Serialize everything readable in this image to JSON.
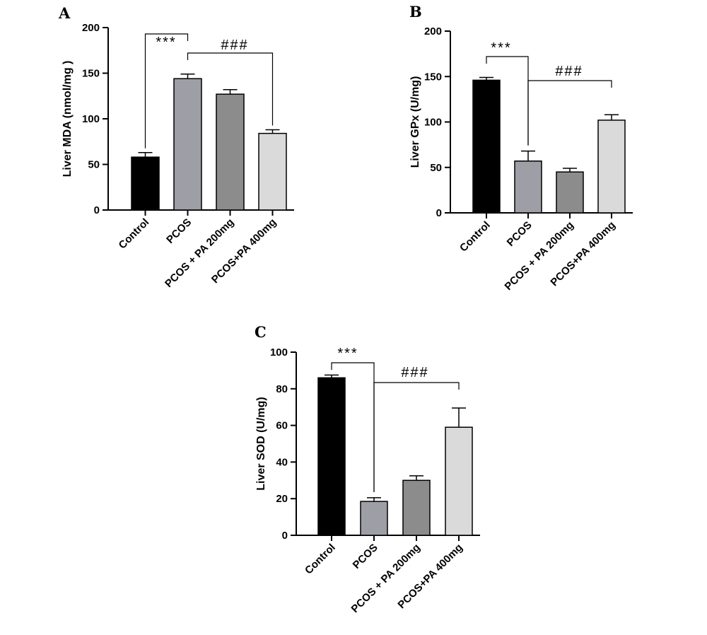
{
  "chart_data": [
    {
      "type": "bar",
      "panel": "A",
      "ylabel": "Liver MDA (nmol/mg )",
      "ylim": [
        0,
        200
      ],
      "yticks": [
        0,
        50,
        100,
        150,
        200
      ],
      "categories": [
        "Control",
        "PCOS",
        "PCOS + PA 200mg",
        "PCOS+PA 400mg"
      ],
      "values": [
        58,
        144,
        127,
        84
      ],
      "errors": [
        5,
        5,
        5,
        4
      ],
      "colors": [
        "#000000",
        "#9e9ea6",
        "#8c8c8c",
        "#dadada"
      ],
      "significance": [
        {
          "label": "***",
          "from": 0,
          "to": 1
        },
        {
          "label": "###",
          "from": 1,
          "to": 3
        }
      ]
    },
    {
      "type": "bar",
      "panel": "B",
      "ylabel": "Liver GPx (U/mg)",
      "ylim": [
        0,
        200
      ],
      "yticks": [
        0,
        50,
        100,
        150,
        200
      ],
      "categories": [
        "Control",
        "PCOS",
        "PCOS + PA 200mg",
        "PCOS+PA 400mg"
      ],
      "values": [
        146,
        57,
        45,
        102
      ],
      "errors": [
        3,
        11,
        4,
        6
      ],
      "colors": [
        "#000000",
        "#9e9ea6",
        "#8c8c8c",
        "#dadada"
      ],
      "significance": [
        {
          "label": "***",
          "from": 0,
          "to": 1
        },
        {
          "label": "###",
          "from": 1,
          "to": 3
        }
      ]
    },
    {
      "type": "bar",
      "panel": "C",
      "ylabel": "Liver SOD (U/mg)",
      "ylim": [
        0,
        100
      ],
      "yticks": [
        0,
        20,
        40,
        60,
        80,
        100
      ],
      "categories": [
        "Control",
        "PCOS",
        "PCOS + PA 200mg",
        "PCOS+PA 400mg"
      ],
      "values": [
        86,
        18.5,
        30,
        59
      ],
      "errors": [
        1.5,
        2,
        2.5,
        10.5
      ],
      "colors": [
        "#000000",
        "#9e9ea6",
        "#8c8c8c",
        "#dadada"
      ],
      "significance": [
        {
          "label": "***",
          "from": 0,
          "to": 1
        },
        {
          "label": "###",
          "from": 1,
          "to": 3
        }
      ]
    }
  ]
}
